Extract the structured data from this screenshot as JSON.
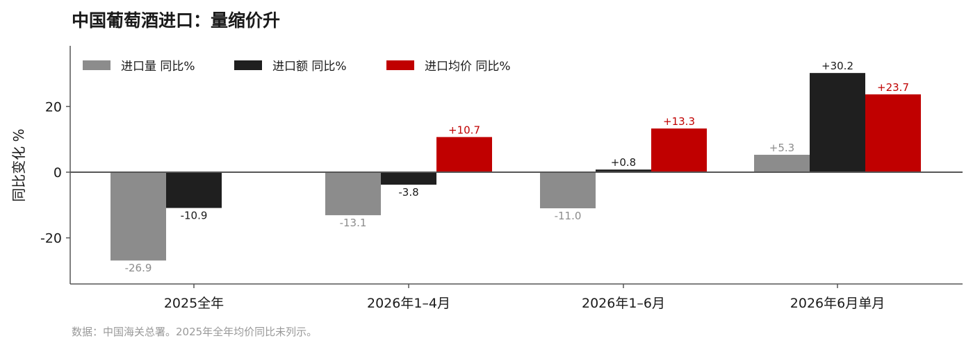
{
  "title": "中国葡萄酒进口：量缩价升",
  "note": "数据：中国海关总署。2025年全年均价同比未列示。",
  "colors": {
    "volume": "#8c8c8c",
    "value": "#1f1f1f",
    "price": "#c00000",
    "axis": "#555555"
  },
  "chart_data": {
    "type": "bar",
    "title": "中国葡萄酒进口：量缩价升",
    "xlabel": "",
    "ylabel": "同比变化 %",
    "ylim": [
      -34,
      38
    ],
    "yticks": [
      -20,
      0,
      20
    ],
    "grid": false,
    "legend": "top-left",
    "categories": [
      "2025全年",
      "2026年1–4月",
      "2026年1–6月",
      "2026年6月单月"
    ],
    "series": [
      {
        "name": "进口量 同比%",
        "color": "#8c8c8c",
        "values": [
          -26.9,
          -13.1,
          -11.0,
          5.3
        ],
        "labels": [
          "-26.9",
          "-13.1",
          "-11.0",
          "+5.3"
        ]
      },
      {
        "name": "进口额 同比%",
        "color": "#1f1f1f",
        "values": [
          -10.9,
          -3.8,
          0.8,
          30.2
        ],
        "labels": [
          "-10.9",
          "-3.8",
          "+0.8",
          "+30.2"
        ]
      },
      {
        "name": "进口均价 同比%",
        "color": "#c00000",
        "values": [
          null,
          10.7,
          13.3,
          23.7
        ],
        "labels": [
          null,
          "+10.7",
          "+13.3",
          "+23.7"
        ]
      }
    ]
  }
}
